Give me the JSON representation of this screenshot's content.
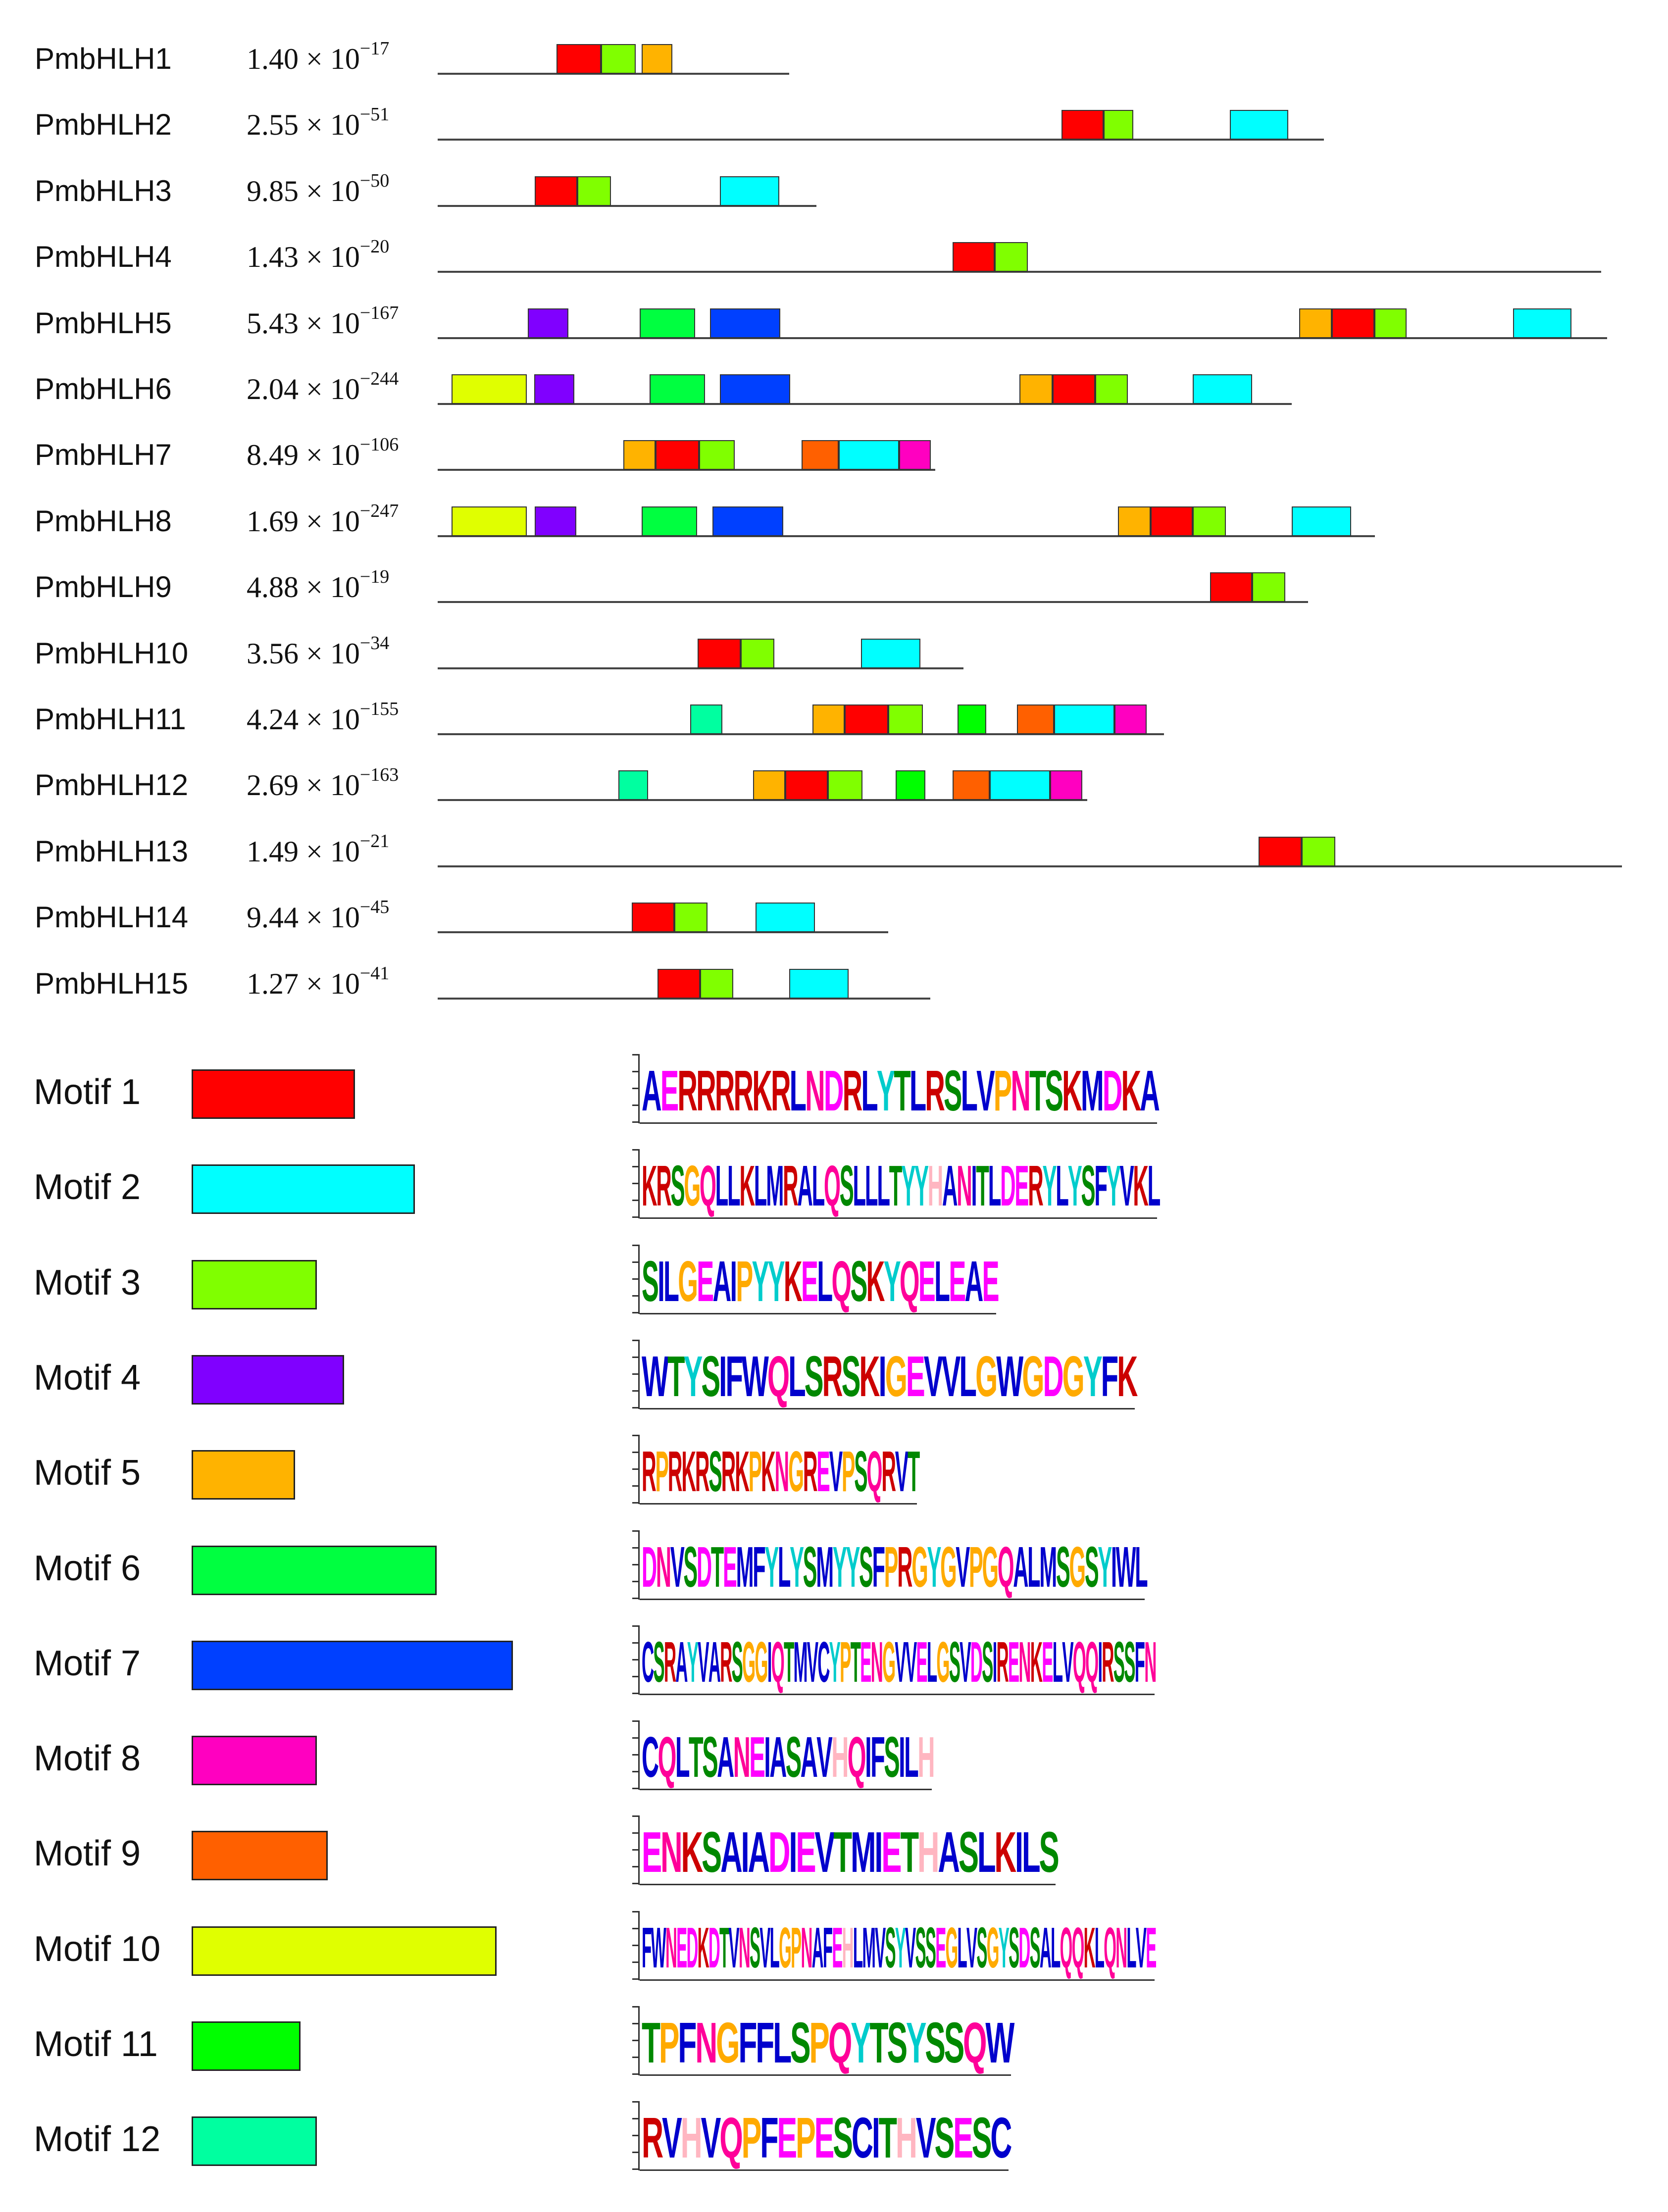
{
  "motif_colors": {
    "1": "#ff0000",
    "2": "#00ffff",
    "3": "#80ff00",
    "4": "#8000ff",
    "5": "#ffb300",
    "6": "#00ff40",
    "7": "#0040ff",
    "8": "#ff00c0",
    "9": "#ff6000",
    "10": "#e0ff00",
    "11": "#00ff00",
    "12": "#00ffa0"
  },
  "genes": [
    {
      "name": "PmbHLH1",
      "evalue": {
        "mantissa": "1.40",
        "exponent": "−17"
      },
      "length": 710,
      "motifs": [
        {
          "m": "1",
          "start": 240,
          "end": 330
        },
        {
          "m": "3",
          "start": 330,
          "end": 400
        },
        {
          "m": "5",
          "start": 412,
          "end": 474
        }
      ]
    },
    {
      "name": "PmbHLH2",
      "evalue": {
        "mantissa": "2.55",
        "exponent": "−51"
      },
      "length": 1790,
      "motifs": [
        {
          "m": "1",
          "start": 1260,
          "end": 1345
        },
        {
          "m": "3",
          "start": 1345,
          "end": 1405
        },
        {
          "m": "2",
          "start": 1600,
          "end": 1718
        }
      ]
    },
    {
      "name": "PmbHLH3",
      "evalue": {
        "mantissa": "9.85",
        "exponent": "−50"
      },
      "length": 765,
      "motifs": [
        {
          "m": "1",
          "start": 196,
          "end": 282
        },
        {
          "m": "3",
          "start": 282,
          "end": 350
        },
        {
          "m": "2",
          "start": 570,
          "end": 690
        }
      ]
    },
    {
      "name": "PmbHLH4",
      "evalue": {
        "mantissa": "1.43",
        "exponent": "−20"
      },
      "length": 2350,
      "motifs": [
        {
          "m": "1",
          "start": 1040,
          "end": 1125
        },
        {
          "m": "3",
          "start": 1125,
          "end": 1192
        }
      ]
    },
    {
      "name": "PmbHLH5",
      "evalue": {
        "mantissa": "5.43",
        "exponent": "−167"
      },
      "length": 2362,
      "motifs": [
        {
          "m": "4",
          "start": 182,
          "end": 264
        },
        {
          "m": "6",
          "start": 408,
          "end": 520
        },
        {
          "m": "7",
          "start": 550,
          "end": 692
        },
        {
          "m": "5",
          "start": 1740,
          "end": 1806
        },
        {
          "m": "1",
          "start": 1806,
          "end": 1892
        },
        {
          "m": "3",
          "start": 1892,
          "end": 1957
        },
        {
          "m": "2",
          "start": 2172,
          "end": 2290
        }
      ]
    },
    {
      "name": "PmbHLH6",
      "evalue": {
        "mantissa": "2.04",
        "exponent": "−244"
      },
      "length": 1725,
      "motifs": [
        {
          "m": "10",
          "start": 28,
          "end": 180
        },
        {
          "m": "4",
          "start": 195,
          "end": 276
        },
        {
          "m": "6",
          "start": 428,
          "end": 540
        },
        {
          "m": "7",
          "start": 570,
          "end": 712
        },
        {
          "m": "5",
          "start": 1175,
          "end": 1242
        },
        {
          "m": "1",
          "start": 1242,
          "end": 1328
        },
        {
          "m": "3",
          "start": 1328,
          "end": 1394
        },
        {
          "m": "2",
          "start": 1525,
          "end": 1645
        }
      ]
    },
    {
      "name": "PmbHLH7",
      "evalue": {
        "mantissa": "8.49",
        "exponent": "−106"
      },
      "length": 1005,
      "motifs": [
        {
          "m": "5",
          "start": 375,
          "end": 440
        },
        {
          "m": "1",
          "start": 440,
          "end": 528
        },
        {
          "m": "3",
          "start": 528,
          "end": 600
        },
        {
          "m": "9",
          "start": 735,
          "end": 810
        },
        {
          "m": "2",
          "start": 810,
          "end": 932
        },
        {
          "m": "8",
          "start": 932,
          "end": 996
        }
      ]
    },
    {
      "name": "PmbHLH8",
      "evalue": {
        "mantissa": "1.69",
        "exponent": "−247"
      },
      "length": 1893,
      "motifs": [
        {
          "m": "10",
          "start": 28,
          "end": 180
        },
        {
          "m": "4",
          "start": 196,
          "end": 280
        },
        {
          "m": "6",
          "start": 412,
          "end": 524
        },
        {
          "m": "7",
          "start": 555,
          "end": 698
        },
        {
          "m": "5",
          "start": 1374,
          "end": 1440
        },
        {
          "m": "1",
          "start": 1440,
          "end": 1525
        },
        {
          "m": "3",
          "start": 1525,
          "end": 1592
        },
        {
          "m": "2",
          "start": 1725,
          "end": 1845
        }
      ]
    },
    {
      "name": "PmbHLH9",
      "evalue": {
        "mantissa": "4.88",
        "exponent": "−19"
      },
      "length": 1758,
      "motifs": [
        {
          "m": "1",
          "start": 1560,
          "end": 1645
        },
        {
          "m": "3",
          "start": 1645,
          "end": 1712
        }
      ]
    },
    {
      "name": "PmbHLH10",
      "evalue": {
        "mantissa": "3.56",
        "exponent": "−34"
      },
      "length": 1062,
      "motifs": [
        {
          "m": "1",
          "start": 525,
          "end": 612
        },
        {
          "m": "3",
          "start": 612,
          "end": 680
        },
        {
          "m": "2",
          "start": 855,
          "end": 975
        }
      ]
    },
    {
      "name": "PmbHLH11",
      "evalue": {
        "mantissa": "4.24",
        "exponent": "−155"
      },
      "length": 1467,
      "motifs": [
        {
          "m": "12",
          "start": 510,
          "end": 575
        },
        {
          "m": "5",
          "start": 757,
          "end": 822
        },
        {
          "m": "1",
          "start": 822,
          "end": 910
        },
        {
          "m": "3",
          "start": 910,
          "end": 980
        },
        {
          "m": "11",
          "start": 1050,
          "end": 1108
        },
        {
          "m": "9",
          "start": 1170,
          "end": 1245
        },
        {
          "m": "2",
          "start": 1245,
          "end": 1367
        },
        {
          "m": "8",
          "start": 1367,
          "end": 1432
        }
      ]
    },
    {
      "name": "PmbHLH12",
      "evalue": {
        "mantissa": "2.69",
        "exponent": "−163"
      },
      "length": 1312,
      "motifs": [
        {
          "m": "12",
          "start": 365,
          "end": 425
        },
        {
          "m": "5",
          "start": 637,
          "end": 702
        },
        {
          "m": "1",
          "start": 702,
          "end": 788
        },
        {
          "m": "3",
          "start": 788,
          "end": 858
        },
        {
          "m": "11",
          "start": 925,
          "end": 985
        },
        {
          "m": "9",
          "start": 1040,
          "end": 1115
        },
        {
          "m": "2",
          "start": 1115,
          "end": 1237
        },
        {
          "m": "8",
          "start": 1237,
          "end": 1302
        }
      ]
    },
    {
      "name": "PmbHLH13",
      "evalue": {
        "mantissa": "1.49",
        "exponent": "−21"
      },
      "length": 2392,
      "motifs": [
        {
          "m": "1",
          "start": 1658,
          "end": 1745
        },
        {
          "m": "3",
          "start": 1745,
          "end": 1813
        }
      ]
    },
    {
      "name": "PmbHLH14",
      "evalue": {
        "mantissa": "9.44",
        "exponent": "−45"
      },
      "length": 910,
      "motifs": [
        {
          "m": "1",
          "start": 392,
          "end": 478
        },
        {
          "m": "3",
          "start": 478,
          "end": 545
        },
        {
          "m": "2",
          "start": 642,
          "end": 762
        }
      ]
    },
    {
      "name": "PmbHLH15",
      "evalue": {
        "mantissa": "1.27",
        "exponent": "−41"
      },
      "length": 995,
      "motifs": [
        {
          "m": "1",
          "start": 444,
          "end": 530
        },
        {
          "m": "3",
          "start": 530,
          "end": 597
        },
        {
          "m": "2",
          "start": 710,
          "end": 830
        }
      ]
    }
  ],
  "motif_key": [
    {
      "label": "Motif 1",
      "m": "1",
      "length": 30,
      "logo": "AERRRRKRLNDRLYTLRSLVPNTSKMDKA"
    },
    {
      "label": "Motif 2",
      "m": "2",
      "length": 41,
      "logo": "KRSGQLLKLMRALQSLLLTYYHANITLDERYLYSFYVKL"
    },
    {
      "label": "Motif 3",
      "m": "3",
      "length": 23,
      "logo": "SILGEAIPYYKELQSKYQELEAE"
    },
    {
      "label": "Motif 4",
      "m": "4",
      "length": 28,
      "logo": "WTYSIFWQLSRSKIGEVVLGWGDGYFK"
    },
    {
      "label": "Motif 5",
      "m": "5",
      "length": 19,
      "logo": "RPRKRSRKPKNGREVPSQRVT"
    },
    {
      "label": "Motif 6",
      "m": "6",
      "length": 45,
      "logo": "DNVSDTEMFYLYSMYYSFPRGYGVPGQALMSGSYIWL"
    },
    {
      "label": "Motif 7",
      "m": "7",
      "length": 59,
      "logo": "CSRAYVARSGGIQTMVCYPTENGVVELGSVDSIRENKELVQQIRSSFN"
    },
    {
      "label": "Motif 8",
      "m": "8",
      "length": 23,
      "logo": "CQLTSANEIASAVHQIFSILH"
    },
    {
      "label": "Motif 9",
      "m": "9",
      "length": 25,
      "logo": "ENKSAIADIEVTMIETHASLKILS"
    },
    {
      "label": "Motif 10",
      "m": "10",
      "length": 56,
      "logo": "FWNEDKDTVNSVLGPNAFEHLMVSYVSSEGLVSGYSDSALQQKLQNLVE"
    },
    {
      "label": "Motif 11",
      "m": "11",
      "length": 20,
      "logo": "TPFNGFFLSPQYTSYSSQW"
    },
    {
      "label": "Motif 12",
      "m": "12",
      "length": 23,
      "logo": "RVHVQPFEPESCITHVSESC"
    }
  ],
  "residue_colors": {
    "acidic": "#ff00ff",
    "basic": "#cc0000",
    "hydrophobic": "#0000cc",
    "polar": "#008800",
    "amide": "#ff0099",
    "glycine": "#ffaa00",
    "proline": "#ffaa00",
    "histidine": "#ffb6c1",
    "aromatic": "#0000cc",
    "cysteine": "#0000cc",
    "tyrosine": "#00cccc"
  }
}
